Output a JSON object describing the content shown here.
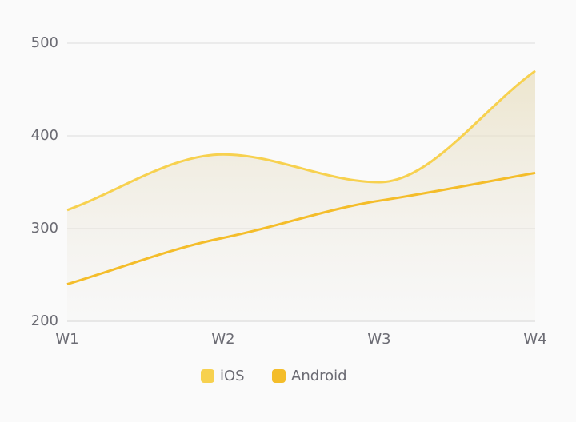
{
  "chart_data": {
    "type": "line",
    "categories": [
      "W1",
      "W2",
      "W3",
      "W4"
    ],
    "series": [
      {
        "name": "iOS",
        "color": "#f7d14f",
        "values": [
          320,
          380,
          350,
          470
        ],
        "area": true
      },
      {
        "name": "Android",
        "color": "#f4bd2a",
        "values": [
          240,
          290,
          330,
          360
        ],
        "area": false
      }
    ],
    "ylim": [
      200,
      500
    ],
    "yticks": [
      200,
      300,
      400,
      500
    ],
    "grid": true,
    "smooth": true,
    "legend": "bottom"
  }
}
